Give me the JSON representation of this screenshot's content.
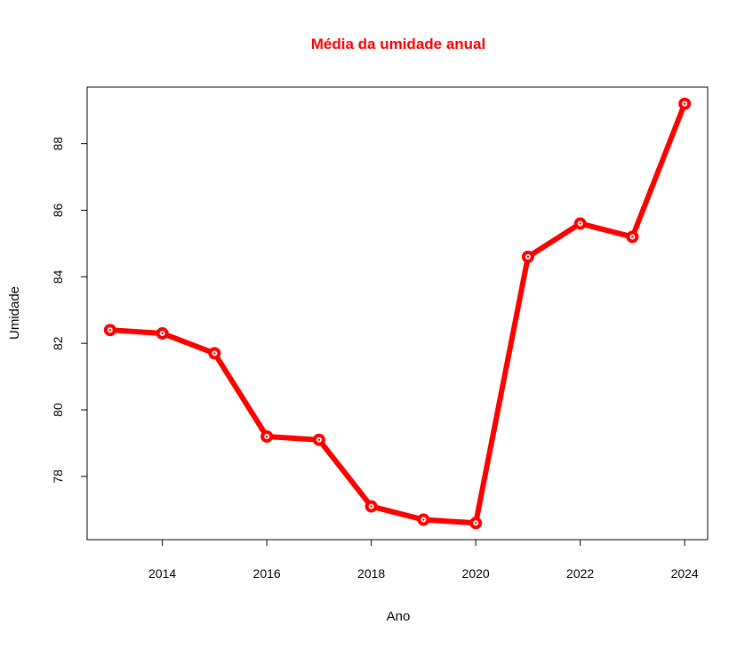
{
  "chart_data": {
    "type": "line",
    "title": "Média da umidade anual",
    "xlabel": "Ano",
    "ylabel": "Umidade",
    "x": [
      2013,
      2014,
      2015,
      2016,
      2017,
      2018,
      2019,
      2020,
      2021,
      2022,
      2023,
      2024
    ],
    "values": [
      82.4,
      82.3,
      81.7,
      79.2,
      79.1,
      77.1,
      76.7,
      76.6,
      84.6,
      85.6,
      85.2,
      89.2
    ],
    "x_ticks": [
      "2014",
      "2016",
      "2018",
      "2020",
      "2022",
      "2024"
    ],
    "y_ticks": [
      "78",
      "80",
      "82",
      "84",
      "86",
      "88"
    ],
    "xlim": [
      2012.56,
      2024.44
    ],
    "ylim": [
      76.1,
      89.7
    ],
    "grid": false,
    "line_color": "#ff0000",
    "title_color": "#ff0000"
  }
}
